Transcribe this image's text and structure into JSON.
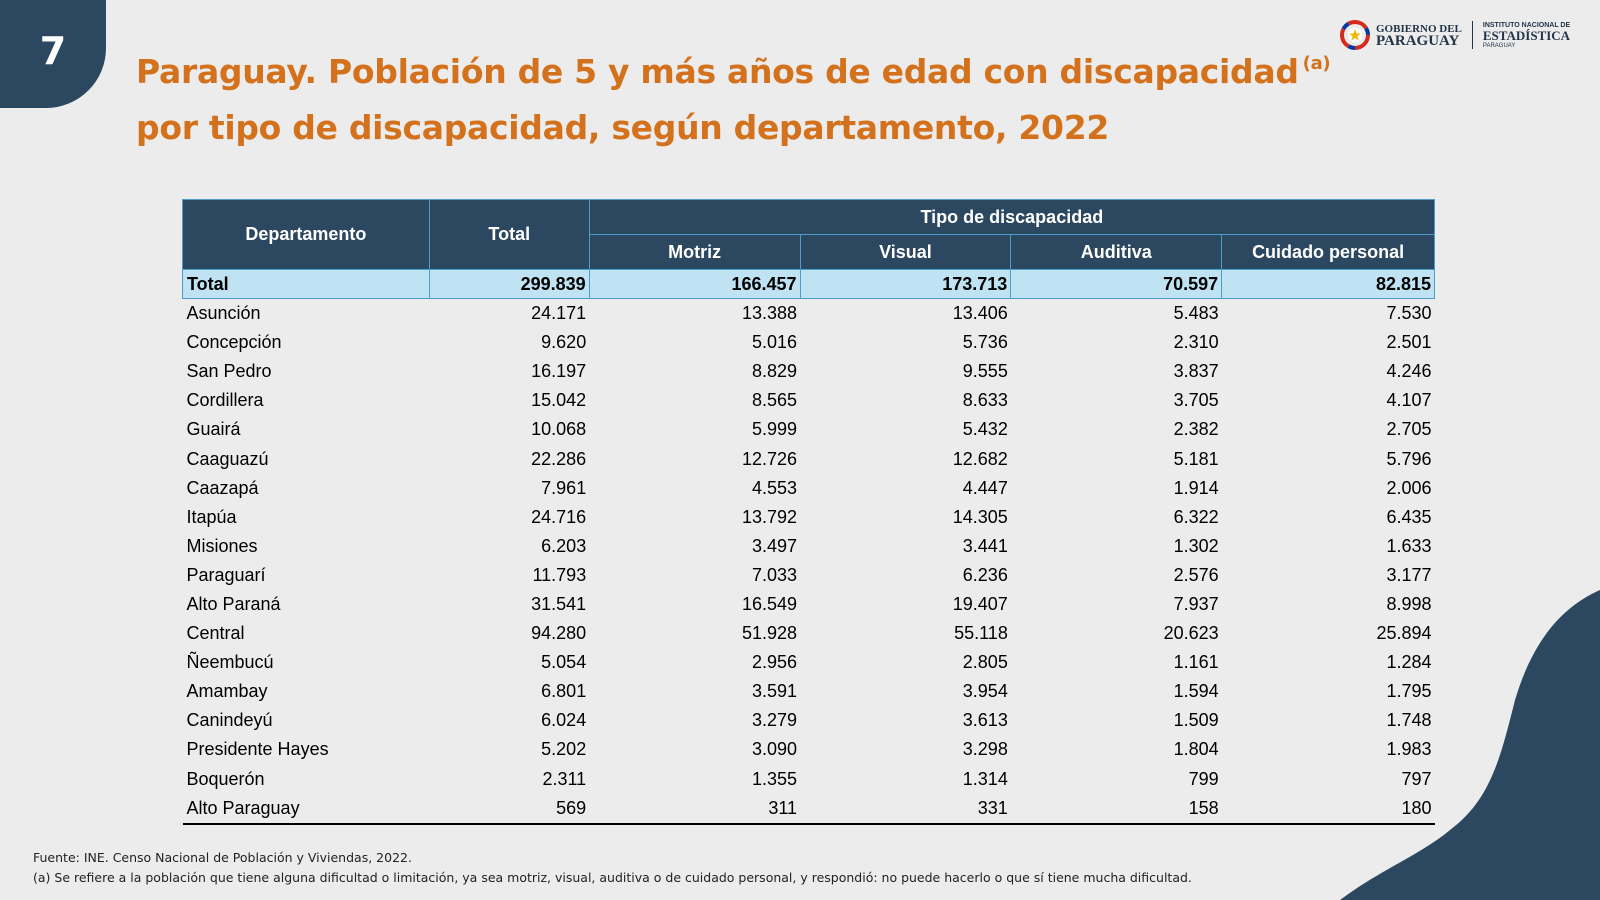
{
  "page_number": "7",
  "title": {
    "line1": "Paraguay. Población de 5 y más años de edad con discapacidad",
    "note_marker": "(a)",
    "line2": "por tipo de discapacidad, según departamento, 2022"
  },
  "logo": {
    "gobierno_line1": "GOBIERNO DEL",
    "gobierno_line2": "PARAGUAY",
    "ine_line1": "INSTITUTO NACIONAL DE",
    "ine_line2": "ESTADÍSTICA",
    "ine_line3": "PARAGUAY",
    "colors": {
      "red": "#d52b1e",
      "blue": "#0038a8",
      "gold": "#f2b705"
    }
  },
  "table": {
    "header": {
      "departamento": "Departamento",
      "total": "Total",
      "group": "Tipo de discapacidad",
      "motriz": "Motriz",
      "visual": "Visual",
      "auditiva": "Auditiva",
      "cuidado": "Cuidado personal"
    },
    "total_row": {
      "name": "Total",
      "total": "299.839",
      "motriz": "166.457",
      "visual": "173.713",
      "auditiva": "70.597",
      "cuidado": "82.815"
    },
    "rows": [
      {
        "name": "Asunción",
        "total": "24.171",
        "motriz": "13.388",
        "visual": "13.406",
        "auditiva": "5.483",
        "cuidado": "7.530"
      },
      {
        "name": "Concepción",
        "total": "9.620",
        "motriz": "5.016",
        "visual": "5.736",
        "auditiva": "2.310",
        "cuidado": "2.501"
      },
      {
        "name": "San Pedro",
        "total": "16.197",
        "motriz": "8.829",
        "visual": "9.555",
        "auditiva": "3.837",
        "cuidado": "4.246"
      },
      {
        "name": "Cordillera",
        "total": "15.042",
        "motriz": "8.565",
        "visual": "8.633",
        "auditiva": "3.705",
        "cuidado": "4.107"
      },
      {
        "name": "Guairá",
        "total": "10.068",
        "motriz": "5.999",
        "visual": "5.432",
        "auditiva": "2.382",
        "cuidado": "2.705"
      },
      {
        "name": "Caaguazú",
        "total": "22.286",
        "motriz": "12.726",
        "visual": "12.682",
        "auditiva": "5.181",
        "cuidado": "5.796"
      },
      {
        "name": "Caazapá",
        "total": "7.961",
        "motriz": "4.553",
        "visual": "4.447",
        "auditiva": "1.914",
        "cuidado": "2.006"
      },
      {
        "name": "Itapúa",
        "total": "24.716",
        "motriz": "13.792",
        "visual": "14.305",
        "auditiva": "6.322",
        "cuidado": "6.435"
      },
      {
        "name": "Misiones",
        "total": "6.203",
        "motriz": "3.497",
        "visual": "3.441",
        "auditiva": "1.302",
        "cuidado": "1.633"
      },
      {
        "name": "Paraguarí",
        "total": "11.793",
        "motriz": "7.033",
        "visual": "6.236",
        "auditiva": "2.576",
        "cuidado": "3.177"
      },
      {
        "name": "Alto Paraná",
        "total": "31.541",
        "motriz": "16.549",
        "visual": "19.407",
        "auditiva": "7.937",
        "cuidado": "8.998"
      },
      {
        "name": "Central",
        "total": "94.280",
        "motriz": "51.928",
        "visual": "55.118",
        "auditiva": "20.623",
        "cuidado": "25.894"
      },
      {
        "name": "Ñeembucú",
        "total": "5.054",
        "motriz": "2.956",
        "visual": "2.805",
        "auditiva": "1.161",
        "cuidado": "1.284"
      },
      {
        "name": "Amambay",
        "total": "6.801",
        "motriz": "3.591",
        "visual": "3.954",
        "auditiva": "1.594",
        "cuidado": "1.795"
      },
      {
        "name": "Canindeyú",
        "total": "6.024",
        "motriz": "3.279",
        "visual": "3.613",
        "auditiva": "1.509",
        "cuidado": "1.748"
      },
      {
        "name": "Presidente Hayes",
        "total": "5.202",
        "motriz": "3.090",
        "visual": "3.298",
        "auditiva": "1.804",
        "cuidado": "1.983"
      },
      {
        "name": "Boquerón",
        "total": "2.311",
        "motriz": "1.355",
        "visual": "1.314",
        "auditiva": "799",
        "cuidado": "797"
      },
      {
        "name": "Alto Paraguay",
        "total": "569",
        "motriz": "311",
        "visual": "331",
        "auditiva": "158",
        "cuidado": "180"
      }
    ]
  },
  "footer": {
    "source": "Fuente: INE. Censo Nacional de Población y Viviendas, 2022.",
    "note": "(a) Se refiere a la población que tiene alguna dificultad o limitación, ya sea motriz, visual, auditiva o de cuidado personal, y respondió: no puede hacerlo o que sí tiene mucha dificultad."
  },
  "colors": {
    "navy": "#2c4861",
    "orange": "#d4711c",
    "light_blue": "#bfe3f3",
    "border_blue": "#4a9ec8",
    "background": "#ececec"
  }
}
